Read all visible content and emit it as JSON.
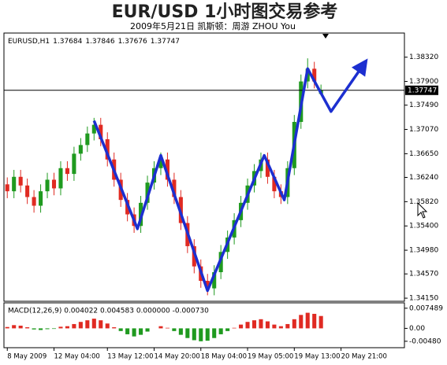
{
  "title": "EUR/USD  1小时图交易参考",
  "subtitle": "2009年5月21日   凯斯顿：周游 ZHOU You",
  "chart_data": [
    {
      "type": "candlestick",
      "symbol": "EURUSD,H1",
      "up_color": "#1f9a1f",
      "down_color": "#e02a22",
      "open": [
        1.3612,
        1.36,
        1.3625,
        1.361,
        1.359,
        1.3575,
        1.36,
        1.362,
        1.3605,
        1.364,
        1.363,
        1.3665,
        1.368,
        1.37,
        1.3715,
        1.369,
        1.3655,
        1.362,
        1.3585,
        1.356,
        1.354,
        1.358,
        1.3615,
        1.364,
        1.3655,
        1.362,
        1.359,
        1.3545,
        1.3505,
        1.347,
        1.3445,
        1.3432,
        1.346,
        1.3495,
        1.352,
        1.355,
        1.358,
        1.361,
        1.3635,
        1.3655,
        1.3625,
        1.36,
        1.359,
        1.364,
        1.372,
        1.379,
        1.3812,
        1.37684
      ],
      "high": [
        1.3624,
        1.3637,
        1.3637,
        1.3622,
        1.3602,
        1.3612,
        1.3632,
        1.3632,
        1.3652,
        1.3652,
        1.3677,
        1.3692,
        1.3712,
        1.3727,
        1.3727,
        1.3702,
        1.3667,
        1.3632,
        1.3597,
        1.3572,
        1.3592,
        1.3627,
        1.3652,
        1.3667,
        1.3667,
        1.3632,
        1.3602,
        1.3557,
        1.3517,
        1.3482,
        1.3457,
        1.3472,
        1.3507,
        1.3532,
        1.3562,
        1.3592,
        1.3622,
        1.3647,
        1.3667,
        1.3667,
        1.3637,
        1.3612,
        1.3652,
        1.3732,
        1.3802,
        1.383,
        1.3824,
        1.37846
      ],
      "low": [
        1.3588,
        1.3588,
        1.3598,
        1.3578,
        1.3563,
        1.3563,
        1.3588,
        1.3593,
        1.3593,
        1.3618,
        1.3618,
        1.3653,
        1.3668,
        1.3688,
        1.3678,
        1.3643,
        1.3608,
        1.3573,
        1.3548,
        1.3528,
        1.3528,
        1.3568,
        1.3603,
        1.3628,
        1.3608,
        1.3578,
        1.3533,
        1.3493,
        1.3458,
        1.3433,
        1.342,
        1.342,
        1.3448,
        1.3483,
        1.3508,
        1.3538,
        1.3568,
        1.3598,
        1.3623,
        1.3613,
        1.3588,
        1.3578,
        1.3578,
        1.3628,
        1.3708,
        1.3778,
        1.3778,
        1.37676
      ],
      "close": [
        1.36,
        1.3625,
        1.361,
        1.359,
        1.3575,
        1.36,
        1.362,
        1.3605,
        1.364,
        1.363,
        1.3665,
        1.368,
        1.37,
        1.3715,
        1.369,
        1.3655,
        1.362,
        1.3585,
        1.356,
        1.354,
        1.358,
        1.3615,
        1.364,
        1.3655,
        1.362,
        1.359,
        1.3545,
        1.3505,
        1.347,
        1.3445,
        1.3432,
        1.346,
        1.3495,
        1.352,
        1.355,
        1.358,
        1.361,
        1.3635,
        1.3655,
        1.3625,
        1.36,
        1.359,
        1.364,
        1.372,
        1.379,
        1.3812,
        1.379,
        1.37747
      ],
      "xlim": [
        -0.5,
        59.5
      ],
      "xticks": [
        {
          "value": 0,
          "label": "8 May 2009"
        },
        {
          "value": 7,
          "label": "12 May 04:00"
        },
        {
          "value": 15,
          "label": "13 May 12:00"
        },
        {
          "value": 22,
          "label": "14 May 20:00"
        },
        {
          "value": 29,
          "label": "18 May 04:00"
        },
        {
          "value": 36,
          "label": "19 May 05:00"
        },
        {
          "value": 43,
          "label": "19 May 13:00"
        },
        {
          "value": 50,
          "label": "20 May 21:00"
        }
      ],
      "ylim": [
        1.3411,
        1.3852
      ],
      "yticks": [
        {
          "value": 1.3832,
          "label": "1.38320"
        },
        {
          "value": 1.379,
          "label": "1.37900"
        },
        {
          "value": 1.3749,
          "label": "1.37490"
        },
        {
          "value": 1.3707,
          "label": "1.37070"
        },
        {
          "value": 1.3665,
          "label": "1.36650"
        },
        {
          "value": 1.3624,
          "label": "1.36240"
        },
        {
          "value": 1.3582,
          "label": "1.35820"
        },
        {
          "value": 1.354,
          "label": "1.35400"
        },
        {
          "value": 1.3498,
          "label": "1.34980"
        },
        {
          "value": 1.3457,
          "label": "1.34570"
        },
        {
          "value": 1.3415,
          "label": "1.34150"
        }
      ],
      "overlay": {
        "color": "#1c2fd0",
        "x": [
          13,
          19.5,
          23,
          30,
          38.5,
          41.5,
          45,
          48.5,
          53.3
        ],
        "y": [
          1.3722,
          1.3535,
          1.3662,
          1.3428,
          1.3662,
          1.3585,
          1.3812,
          1.3738,
          1.3818
        ]
      }
    },
    {
      "type": "bar",
      "label": "MACD(12,26,9) 0.004022 0.004583 0.000000 -0.000730",
      "pos_color": "#e02a22",
      "neg_color": "#1f9a1f",
      "values": [
        0.0005,
        0.0012,
        0.001,
        0.0004,
        -0.0004,
        -0.0006,
        -0.0003,
        -0.0002,
        0.0006,
        0.0008,
        0.0016,
        0.0024,
        0.003,
        0.0036,
        0.003,
        0.0018,
        0.0004,
        -0.001,
        -0.0022,
        -0.003,
        -0.0024,
        -0.0012,
        0.0,
        0.0008,
        0.0002,
        -0.001,
        -0.0024,
        -0.0036,
        -0.0044,
        -0.0048,
        -0.0046,
        -0.0036,
        -0.0022,
        -0.001,
        0.0002,
        0.0014,
        0.0024,
        0.003,
        0.0034,
        0.0026,
        0.0014,
        0.0008,
        0.0016,
        0.0034,
        0.005,
        0.0058,
        0.0054,
        0.0046
      ],
      "ylim": [
        -0.0069,
        0.0089
      ],
      "yticks": [
        0.007489,
        {
          "value": 0,
          "label": "0.00"
        },
        {
          "value": -0.0048,
          "label": "-0.00480"
        }
      ]
    }
  ]
}
